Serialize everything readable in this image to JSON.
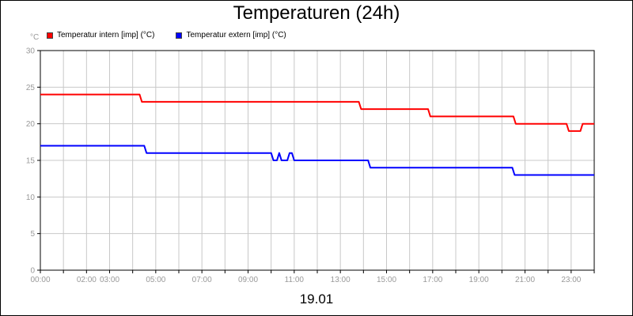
{
  "chart_data": {
    "type": "line",
    "title": "Temperaturen (24h)",
    "ylabel": "°C",
    "xlabel": "19.01",
    "ylim": [
      0,
      30
    ],
    "yticks": [
      0,
      5,
      10,
      15,
      20,
      25,
      30
    ],
    "xlim_hours": [
      0,
      24
    ],
    "xticks": [
      {
        "h": 0,
        "label": "00:00"
      },
      {
        "h": 2,
        "label": "02:00"
      },
      {
        "h": 3,
        "label": "03:00"
      },
      {
        "h": 5,
        "label": "05:00"
      },
      {
        "h": 7,
        "label": "07:00"
      },
      {
        "h": 9,
        "label": "09:00"
      },
      {
        "h": 11,
        "label": "11:00"
      },
      {
        "h": 13,
        "label": "13:00"
      },
      {
        "h": 15,
        "label": "15:00"
      },
      {
        "h": 17,
        "label": "17:00"
      },
      {
        "h": 19,
        "label": "19:00"
      },
      {
        "h": 21,
        "label": "21:00"
      },
      {
        "h": 23,
        "label": "23:00"
      }
    ],
    "grid": true,
    "legend_position": "top-left",
    "series": [
      {
        "name": "Temperatur intern [imp] (°C)",
        "color": "#ff0000",
        "x": [
          0,
          4.3,
          4.4,
          13.8,
          13.9,
          16.8,
          16.9,
          20.5,
          20.6,
          22.8,
          22.9,
          23.4,
          23.5,
          24
        ],
        "y": [
          24,
          24,
          23,
          23,
          22,
          22,
          21,
          21,
          20,
          20,
          19,
          19,
          20,
          20
        ]
      },
      {
        "name": "Temperatur extern [imp] (°C)",
        "color": "#0000ff",
        "x": [
          0,
          4.5,
          4.6,
          10.0,
          10.1,
          10.25,
          10.35,
          10.45,
          10.7,
          10.8,
          10.9,
          11.0,
          14.2,
          14.3,
          20.45,
          20.55,
          24
        ],
        "y": [
          17,
          17,
          16,
          16,
          15,
          15,
          16,
          15,
          15,
          16,
          16,
          15,
          15,
          14,
          14,
          13,
          13
        ]
      }
    ]
  }
}
